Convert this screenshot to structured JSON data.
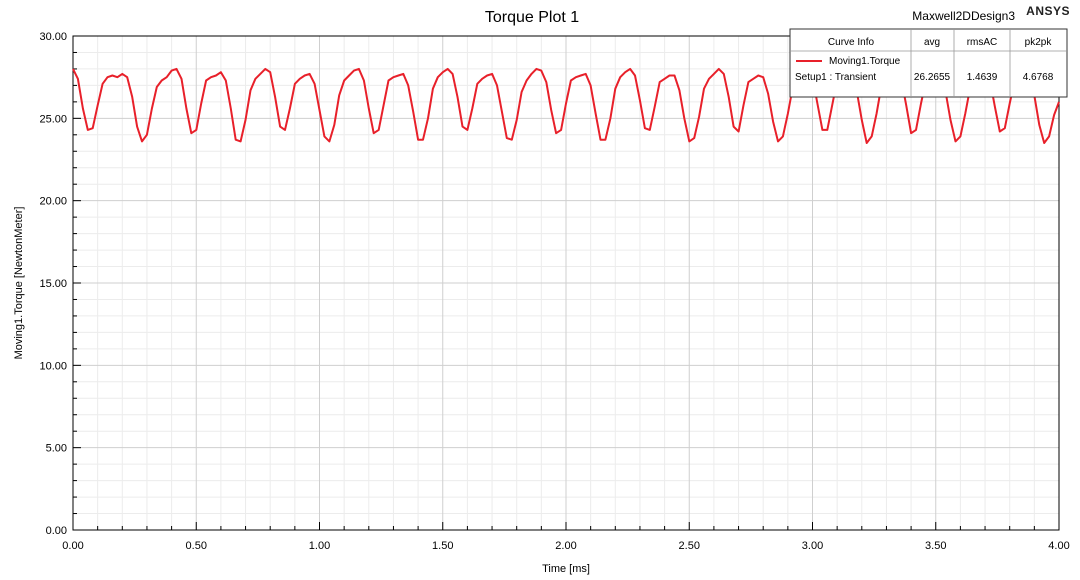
{
  "header": {
    "title": "Torque Plot 1",
    "design_name": "Maxwell2DDesign3",
    "brand": "ANSYS"
  },
  "legend": {
    "headers": [
      "Curve Info",
      "avg",
      "rmsAC",
      "pk2pk"
    ],
    "curve_name": "Moving1.Torque",
    "curve_setup": "Setup1 : Transient",
    "avg": "26.2655",
    "rmsAC": "1.4639",
    "pk2pk": "4.6768",
    "line_color": "#e8202a"
  },
  "chart_data": {
    "type": "line",
    "title": "Torque Plot 1",
    "xlabel": "Time [ms]",
    "ylabel": "Moving1.Torque [NewtonMeter]",
    "xlim": [
      0,
      4
    ],
    "ylim": [
      0,
      30
    ],
    "x_ticks": [
      "0.00",
      "0.50",
      "1.00",
      "1.50",
      "2.00",
      "2.50",
      "3.00",
      "3.50",
      "4.00"
    ],
    "y_ticks": [
      "0.00",
      "5.00",
      "10.00",
      "15.00",
      "20.00",
      "25.00",
      "30.00"
    ],
    "grid": true,
    "series": [
      {
        "name": "Moving1.Torque",
        "color": "#e8202a",
        "x": [
          0.0,
          0.02,
          0.04,
          0.06,
          0.08,
          0.1,
          0.12,
          0.14,
          0.16,
          0.18,
          0.2,
          0.22,
          0.24,
          0.26,
          0.28,
          0.3,
          0.32,
          0.34,
          0.36,
          0.38,
          0.4,
          0.42,
          0.44,
          0.46,
          0.48,
          0.5,
          0.52,
          0.54,
          0.56,
          0.58,
          0.6,
          0.62,
          0.64,
          0.66,
          0.68,
          0.7,
          0.72,
          0.74,
          0.76,
          0.78,
          0.8,
          0.82,
          0.84,
          0.86,
          0.88,
          0.9,
          0.92,
          0.94,
          0.96,
          0.98,
          1.0,
          1.02,
          1.04,
          1.06,
          1.08,
          1.1,
          1.12,
          1.14,
          1.16,
          1.18,
          1.2,
          1.22,
          1.24,
          1.26,
          1.28,
          1.3,
          1.32,
          1.34,
          1.36,
          1.38,
          1.4,
          1.42,
          1.44,
          1.46,
          1.48,
          1.5,
          1.52,
          1.54,
          1.56,
          1.58,
          1.6,
          1.62,
          1.64,
          1.66,
          1.68,
          1.7,
          1.72,
          1.74,
          1.76,
          1.78,
          1.8,
          1.82,
          1.84,
          1.86,
          1.88,
          1.9,
          1.92,
          1.94,
          1.96,
          1.98,
          2.0,
          2.02,
          2.04,
          2.06,
          2.08,
          2.1,
          2.12,
          2.14,
          2.16,
          2.18,
          2.2,
          2.22,
          2.24,
          2.26,
          2.28,
          2.3,
          2.32,
          2.34,
          2.36,
          2.38,
          2.4,
          2.42,
          2.44,
          2.46,
          2.48,
          2.5,
          2.52,
          2.54,
          2.56,
          2.58,
          2.6,
          2.62,
          2.64,
          2.66,
          2.68,
          2.7,
          2.72,
          2.74,
          2.76,
          2.78,
          2.8,
          2.82,
          2.84,
          2.86,
          2.88,
          2.9,
          2.92,
          2.94,
          2.96,
          2.98,
          3.0,
          3.02,
          3.04,
          3.06,
          3.08,
          3.1,
          3.12,
          3.14,
          3.16,
          3.18,
          3.2,
          3.22,
          3.24,
          3.26,
          3.28,
          3.3,
          3.32,
          3.34,
          3.36,
          3.38,
          3.4,
          3.42,
          3.44,
          3.46,
          3.48,
          3.5,
          3.52,
          3.54,
          3.56,
          3.58,
          3.6,
          3.62,
          3.64,
          3.66,
          3.68,
          3.7,
          3.72,
          3.74,
          3.76,
          3.78,
          3.8,
          3.82,
          3.84,
          3.86,
          3.88,
          3.9,
          3.92,
          3.94,
          3.96,
          3.98,
          4.0
        ],
        "y": [
          28.0,
          27.4,
          25.6,
          24.3,
          24.4,
          25.8,
          27.1,
          27.5,
          27.6,
          27.5,
          27.7,
          27.5,
          26.3,
          24.5,
          23.6,
          24.0,
          25.6,
          26.9,
          27.3,
          27.5,
          27.9,
          28.0,
          27.4,
          25.6,
          24.1,
          24.3,
          25.9,
          27.3,
          27.5,
          27.6,
          27.8,
          27.3,
          25.6,
          23.7,
          23.6,
          24.9,
          26.7,
          27.4,
          27.7,
          28.0,
          27.8,
          26.3,
          24.5,
          24.3,
          25.6,
          27.1,
          27.4,
          27.6,
          27.7,
          27.1,
          25.5,
          23.9,
          23.6,
          24.6,
          26.4,
          27.3,
          27.6,
          27.9,
          28.0,
          27.3,
          25.6,
          24.1,
          24.3,
          25.8,
          27.3,
          27.5,
          27.6,
          27.7,
          27.0,
          25.4,
          23.7,
          23.7,
          25.0,
          26.8,
          27.5,
          27.8,
          28.0,
          27.7,
          26.3,
          24.5,
          24.3,
          25.6,
          27.1,
          27.4,
          27.6,
          27.7,
          27.0,
          25.4,
          23.8,
          23.7,
          24.9,
          26.6,
          27.3,
          27.7,
          28.0,
          27.9,
          27.2,
          25.5,
          24.1,
          24.3,
          25.9,
          27.3,
          27.5,
          27.6,
          27.7,
          27.0,
          25.3,
          23.7,
          23.7,
          25.0,
          26.8,
          27.5,
          27.8,
          28.0,
          27.6,
          26.1,
          24.4,
          24.3,
          25.7,
          27.2,
          27.4,
          27.6,
          27.6,
          26.7,
          25.0,
          23.6,
          23.8,
          25.1,
          26.8,
          27.4,
          27.7,
          28.0,
          27.7,
          26.3,
          24.5,
          24.2,
          25.8,
          27.2,
          27.4,
          27.6,
          27.5,
          26.5,
          24.8,
          23.6,
          23.9,
          25.3,
          26.9,
          27.5,
          27.8,
          28.0,
          27.5,
          25.9,
          24.3,
          24.3,
          25.8,
          27.3,
          27.5,
          27.6,
          27.6,
          26.6,
          24.9,
          23.5,
          23.9,
          25.3,
          27.0,
          27.5,
          27.8,
          28.0,
          27.4,
          25.8,
          24.1,
          24.3,
          25.9,
          27.3,
          27.5,
          27.6,
          27.6,
          26.6,
          24.9,
          23.6,
          23.9,
          25.3,
          26.9,
          27.4,
          27.8,
          28.0,
          27.3,
          25.7,
          24.2,
          24.4,
          25.9,
          27.3,
          27.5,
          27.6,
          27.6,
          26.4,
          24.6,
          23.5,
          23.9,
          25.2,
          26.0
        ]
      }
    ]
  }
}
